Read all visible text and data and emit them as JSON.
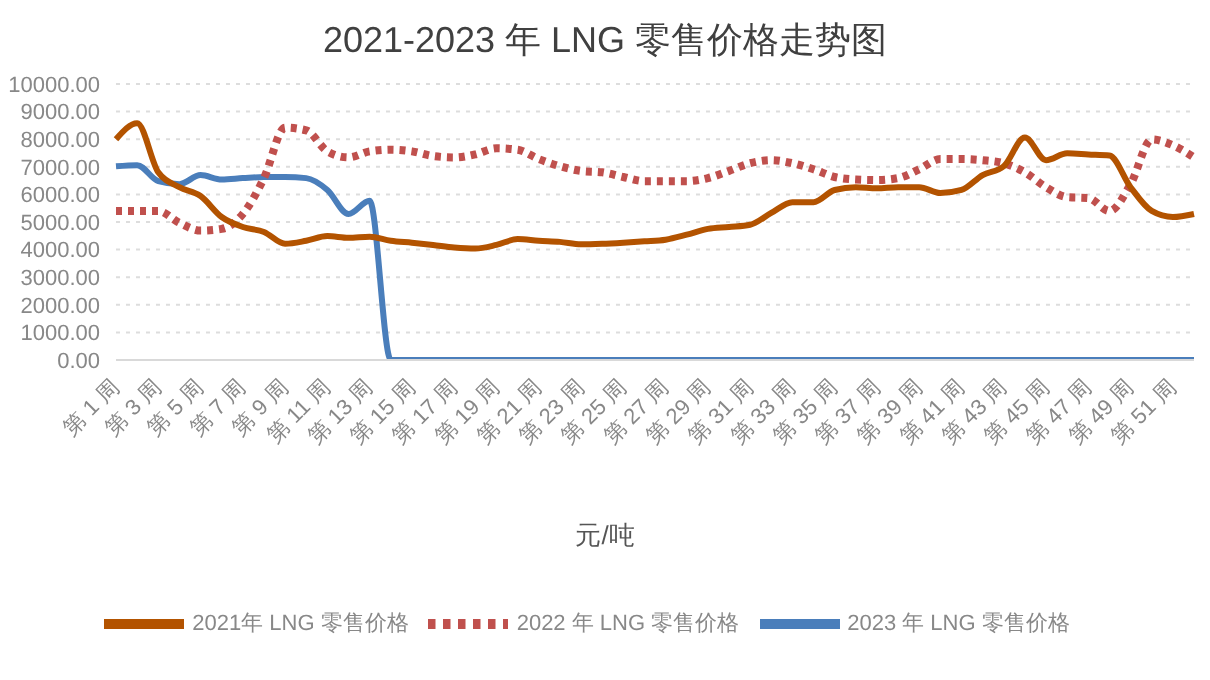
{
  "chart_data": {
    "type": "line",
    "title": "2021-2023 年 LNG 零售价格走势图",
    "xlabel": "元/吨",
    "categories": [
      "第 1 周",
      null,
      "第 3 周",
      null,
      "第 5 周",
      null,
      "第 7 周",
      null,
      "第 9 周",
      null,
      "第 11 周",
      null,
      "第 13 周",
      null,
      "第 15 周",
      null,
      "第 17 周",
      null,
      "第 19 周",
      null,
      "第 21 周",
      null,
      "第 23 周",
      null,
      "第 25 周",
      null,
      "第 27 周",
      null,
      "第 29 周",
      null,
      "第 31 周",
      null,
      "第 33 周",
      null,
      "第 35 周",
      null,
      "第 37 周",
      null,
      "第 39 周",
      null,
      "第 41 周",
      null,
      "第 43 周",
      null,
      "第 45 周",
      null,
      "第 47 周",
      null,
      "第 49 周",
      null,
      "第 51 周",
      null
    ],
    "series": [
      {
        "name": "2023 年 LNG 零售价格",
        "color": "#4a7ebb",
        "line_style": "solid",
        "values": [
          7020,
          7060,
          6480,
          6370,
          6700,
          6540,
          6590,
          6630,
          6630,
          6590,
          6160,
          5290,
          5770,
          0,
          0,
          0,
          0,
          0,
          0,
          0,
          0,
          0,
          0,
          0,
          0,
          0,
          0,
          0,
          0,
          0,
          0,
          0,
          0,
          0,
          0,
          0,
          0,
          0,
          0,
          0,
          0,
          0,
          0,
          0,
          0,
          0,
          0,
          0,
          0,
          0,
          0,
          0
        ]
      },
      {
        "name": "2022 年 LNG 零售价格",
        "color": "#c0504d",
        "line_style": "dotted",
        "values": [
          5400,
          5400,
          5400,
          4970,
          4690,
          4750,
          5290,
          6590,
          8420,
          8320,
          7560,
          7340,
          7560,
          7620,
          7560,
          7390,
          7340,
          7450,
          7670,
          7620,
          7280,
          7020,
          6850,
          6800,
          6630,
          6480,
          6480,
          6480,
          6590,
          6850,
          7130,
          7240,
          7130,
          6910,
          6630,
          6540,
          6520,
          6590,
          6910,
          7280,
          7280,
          7240,
          7130,
          6800,
          6260,
          5900,
          5870,
          5400,
          6370,
          7990,
          7780,
          7340
        ]
      },
      {
        "name": "2021年 LNG 零售价格",
        "color": "#b35300",
        "line_style": "solid",
        "values": [
          8000,
          8580,
          6800,
          6260,
          5940,
          5180,
          4820,
          4640,
          4210,
          4320,
          4490,
          4430,
          4470,
          4320,
          4250,
          4170,
          4080,
          4040,
          4170,
          4380,
          4320,
          4280,
          4190,
          4210,
          4250,
          4300,
          4360,
          4540,
          4750,
          4820,
          4900,
          5330,
          5720,
          5720,
          6160,
          6260,
          6220,
          6260,
          6260,
          6050,
          6160,
          6700,
          7020,
          8060,
          7240,
          7490,
          7450,
          7410,
          6260,
          5400,
          5180,
          5290
        ]
      }
    ],
    "ylim": [
      0,
      10000
    ],
    "yticks": [
      {
        "value": 0,
        "label": "0.00"
      },
      {
        "value": 1000,
        "label": "1000.00"
      },
      {
        "value": 2000,
        "label": "2000.00"
      },
      {
        "value": 3000,
        "label": "3000.00"
      },
      {
        "value": 4000,
        "label": "4000.00"
      },
      {
        "value": 5000,
        "label": "5000.00"
      },
      {
        "value": 6000,
        "label": "6000.00"
      },
      {
        "value": 7000,
        "label": "7000.00"
      },
      {
        "value": 8000,
        "label": "8000.00"
      },
      {
        "value": 9000,
        "label": "9000.00"
      },
      {
        "value": 10000,
        "label": "10000.00"
      }
    ],
    "grid": "y",
    "legend": "bottom",
    "marker": "none"
  }
}
